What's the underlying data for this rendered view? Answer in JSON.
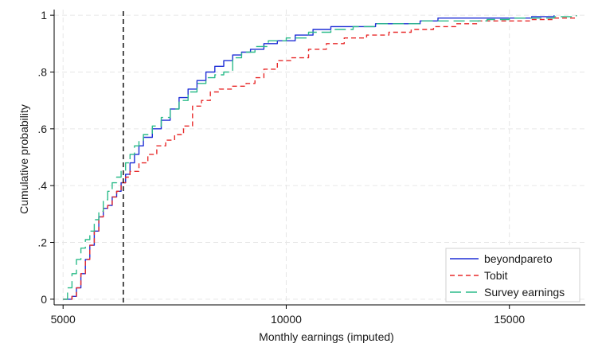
{
  "chart_data": {
    "type": "line",
    "xlabel": "Monthly earnings (imputed)",
    "ylabel": "Cumulative probability",
    "xlim": [
      4800,
      16700
    ],
    "ylim": [
      -0.02,
      1.02
    ],
    "x_ticks": [
      {
        "value": 5000,
        "label": "5000"
      },
      {
        "value": 10000,
        "label": "10000"
      },
      {
        "value": 15000,
        "label": "15000"
      }
    ],
    "y_ticks": [
      {
        "value": 0,
        "label": "0"
      },
      {
        "value": 0.2,
        "label": ".2"
      },
      {
        "value": 0.4,
        "label": ".4"
      },
      {
        "value": 0.6,
        "label": ".6"
      },
      {
        "value": 0.8,
        "label": ".8"
      },
      {
        "value": 1,
        "label": "1"
      }
    ],
    "grid": true,
    "legend_position": "bottom-right",
    "reference_line": {
      "x": 6350,
      "style": "dashed",
      "color": "#000000"
    },
    "series": [
      {
        "name": "beyondpareto",
        "color": "#1f2fd6",
        "dash": "solid",
        "points": [
          [
            5000,
            0.0
          ],
          [
            5200,
            0.01
          ],
          [
            5300,
            0.04
          ],
          [
            5400,
            0.09
          ],
          [
            5500,
            0.14
          ],
          [
            5600,
            0.19
          ],
          [
            5700,
            0.24
          ],
          [
            5800,
            0.29
          ],
          [
            5900,
            0.32
          ],
          [
            6000,
            0.33
          ],
          [
            6100,
            0.36
          ],
          [
            6200,
            0.38
          ],
          [
            6300,
            0.41
          ],
          [
            6400,
            0.44
          ],
          [
            6500,
            0.48
          ],
          [
            6600,
            0.51
          ],
          [
            6700,
            0.54
          ],
          [
            6800,
            0.57
          ],
          [
            7000,
            0.6
          ],
          [
            7200,
            0.63
          ],
          [
            7400,
            0.67
          ],
          [
            7600,
            0.71
          ],
          [
            7800,
            0.74
          ],
          [
            8000,
            0.77
          ],
          [
            8200,
            0.8
          ],
          [
            8400,
            0.82
          ],
          [
            8600,
            0.84
          ],
          [
            8800,
            0.86
          ],
          [
            9000,
            0.87
          ],
          [
            9200,
            0.88
          ],
          [
            9500,
            0.9
          ],
          [
            9800,
            0.91
          ],
          [
            10200,
            0.93
          ],
          [
            10600,
            0.95
          ],
          [
            11000,
            0.96
          ],
          [
            11500,
            0.96
          ],
          [
            12000,
            0.97
          ],
          [
            12500,
            0.97
          ],
          [
            13000,
            0.98
          ],
          [
            13400,
            0.99
          ],
          [
            14000,
            0.99
          ],
          [
            14500,
            0.99
          ],
          [
            15000,
            0.99
          ],
          [
            15500,
            0.995
          ],
          [
            16000,
            1.0
          ]
        ]
      },
      {
        "name": "Tobit",
        "color": "#e82a2a",
        "dash": "dashed",
        "points": [
          [
            5000,
            0.0
          ],
          [
            5200,
            0.01
          ],
          [
            5300,
            0.04
          ],
          [
            5400,
            0.09
          ],
          [
            5500,
            0.14
          ],
          [
            5600,
            0.19
          ],
          [
            5700,
            0.24
          ],
          [
            5800,
            0.29
          ],
          [
            5900,
            0.32
          ],
          [
            6000,
            0.33
          ],
          [
            6100,
            0.36
          ],
          [
            6200,
            0.38
          ],
          [
            6300,
            0.41
          ],
          [
            6400,
            0.43
          ],
          [
            6500,
            0.45
          ],
          [
            6700,
            0.48
          ],
          [
            6900,
            0.51
          ],
          [
            7100,
            0.54
          ],
          [
            7300,
            0.56
          ],
          [
            7500,
            0.58
          ],
          [
            7700,
            0.61
          ],
          [
            7900,
            0.68
          ],
          [
            8100,
            0.7
          ],
          [
            8300,
            0.73
          ],
          [
            8500,
            0.74
          ],
          [
            8800,
            0.75
          ],
          [
            9100,
            0.76
          ],
          [
            9300,
            0.78
          ],
          [
            9500,
            0.81
          ],
          [
            9800,
            0.84
          ],
          [
            10100,
            0.85
          ],
          [
            10500,
            0.88
          ],
          [
            10900,
            0.9
          ],
          [
            11300,
            0.92
          ],
          [
            11800,
            0.93
          ],
          [
            12300,
            0.94
          ],
          [
            12800,
            0.95
          ],
          [
            13300,
            0.96
          ],
          [
            13800,
            0.97
          ],
          [
            14300,
            0.98
          ],
          [
            15000,
            0.98
          ],
          [
            15500,
            0.985
          ],
          [
            16000,
            0.99
          ],
          [
            16500,
            1.0
          ]
        ]
      },
      {
        "name": "Survey earnings",
        "color": "#2cbc8a",
        "dash": "longdash",
        "points": [
          [
            5000,
            0.0
          ],
          [
            5100,
            0.04
          ],
          [
            5200,
            0.09
          ],
          [
            5300,
            0.14
          ],
          [
            5400,
            0.18
          ],
          [
            5500,
            0.21
          ],
          [
            5600,
            0.24
          ],
          [
            5700,
            0.28
          ],
          [
            5800,
            0.31
          ],
          [
            5900,
            0.35
          ],
          [
            6000,
            0.38
          ],
          [
            6100,
            0.41
          ],
          [
            6200,
            0.43
          ],
          [
            6300,
            0.45
          ],
          [
            6400,
            0.48
          ],
          [
            6500,
            0.51
          ],
          [
            6600,
            0.54
          ],
          [
            6700,
            0.56
          ],
          [
            6800,
            0.58
          ],
          [
            7000,
            0.61
          ],
          [
            7200,
            0.64
          ],
          [
            7400,
            0.67
          ],
          [
            7600,
            0.7
          ],
          [
            7800,
            0.73
          ],
          [
            8000,
            0.76
          ],
          [
            8200,
            0.78
          ],
          [
            8400,
            0.79
          ],
          [
            8600,
            0.8
          ],
          [
            8800,
            0.85
          ],
          [
            9000,
            0.87
          ],
          [
            9300,
            0.89
          ],
          [
            9600,
            0.91
          ],
          [
            10000,
            0.92
          ],
          [
            10500,
            0.94
          ],
          [
            11000,
            0.95
          ],
          [
            11500,
            0.96
          ],
          [
            12000,
            0.97
          ],
          [
            12500,
            0.97
          ],
          [
            13000,
            0.98
          ],
          [
            13500,
            0.98
          ],
          [
            14000,
            0.98
          ],
          [
            14500,
            0.985
          ],
          [
            15000,
            0.99
          ],
          [
            15500,
            0.99
          ],
          [
            16000,
            0.995
          ],
          [
            16500,
            1.0
          ]
        ]
      }
    ]
  }
}
